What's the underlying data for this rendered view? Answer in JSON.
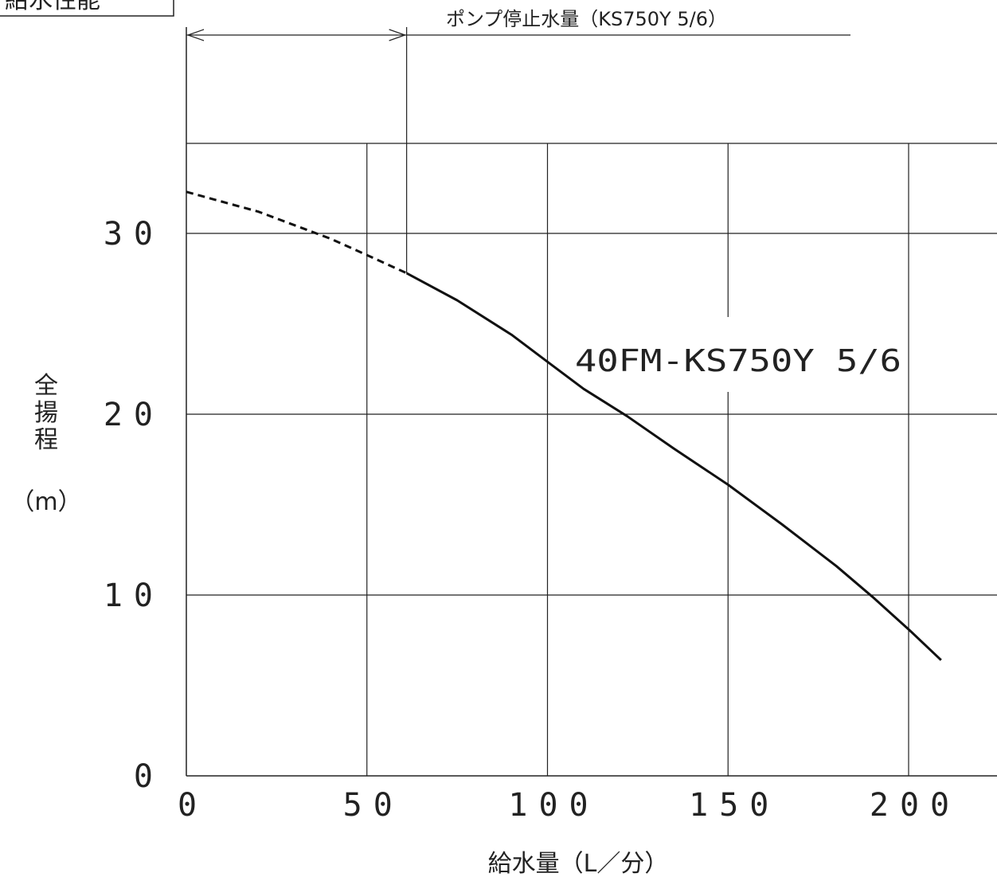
{
  "corner_title": "給水性能",
  "annotation": {
    "text": "ポンプ停止水量（KS750Y 5/6）",
    "x": 61
  },
  "chart_data": {
    "type": "line",
    "xlabel": "給水量（L／分）",
    "ylabel_chars": [
      "全",
      "揚",
      "程"
    ],
    "ylabel_unit": "（m）",
    "xlim": [
      0,
      225
    ],
    "ylim": [
      0,
      35
    ],
    "xticks": [
      0,
      50,
      100,
      150,
      200
    ],
    "yticks": [
      0,
      10,
      20,
      30
    ],
    "xtick_labels": [
      "0",
      "50",
      "100",
      "150",
      "200"
    ],
    "ytick_labels": [
      "0",
      "10",
      "20",
      "30"
    ],
    "grid": true,
    "series": [
      {
        "name": "40FM-KS750Y 5/6",
        "dashed_until_x": 61,
        "x": [
          0,
          20,
          40,
          50,
          61,
          75,
          90,
          100,
          110,
          122,
          135,
          150,
          165,
          180,
          190,
          200,
          209
        ],
        "y": [
          32.3,
          31.2,
          29.7,
          28.8,
          27.8,
          26.3,
          24.4,
          22.9,
          21.4,
          19.9,
          18.1,
          16.1,
          13.9,
          11.6,
          9.9,
          8.1,
          6.4
        ]
      }
    ]
  }
}
